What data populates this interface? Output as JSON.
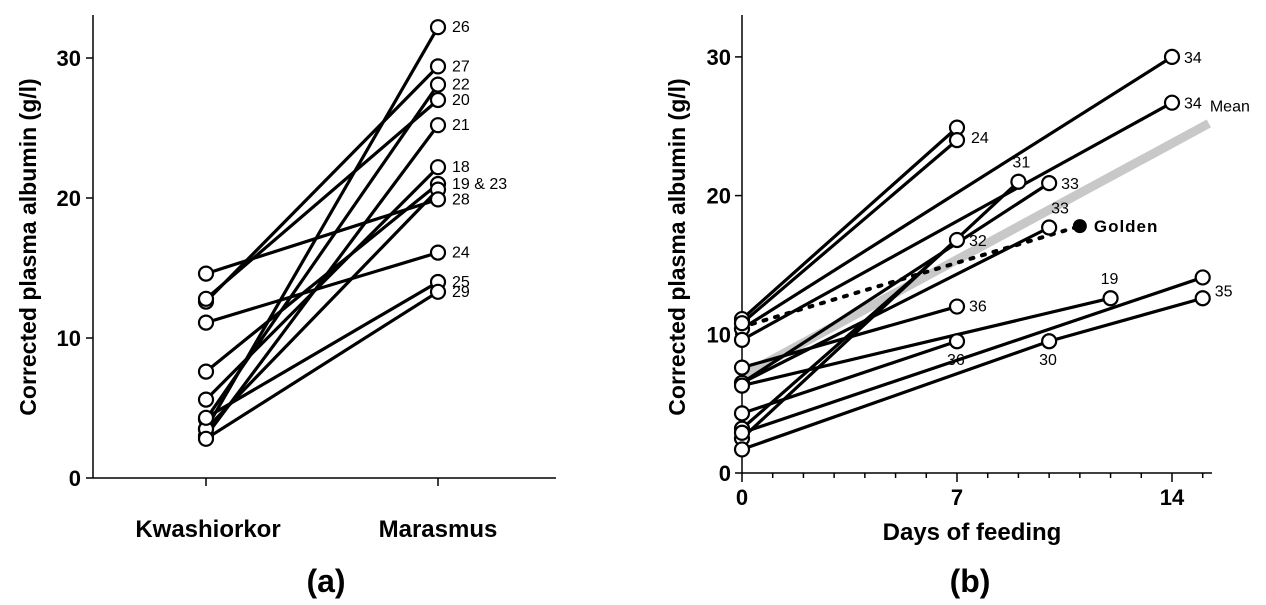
{
  "chart_data": [
    {
      "type": "line",
      "panel_label": "(a)",
      "ylabel": "Corrected plasma albumin (g/l)",
      "ylim": [
        0,
        32
      ],
      "yticks": [
        0,
        10,
        20,
        30
      ],
      "categories": [
        "Kwashiorkor",
        "Marasmus"
      ],
      "pairs": [
        {
          "values": [
            3.5,
            32.2
          ],
          "label": "26"
        },
        {
          "values": [
            12.6,
            29.4
          ],
          "label": "27"
        },
        {
          "values": [
            4.2,
            28.1
          ],
          "label": "22"
        },
        {
          "values": [
            12.8,
            27.0
          ],
          "label": "20"
        },
        {
          "values": [
            3.0,
            25.2
          ],
          "label": "21"
        },
        {
          "values": [
            5.6,
            22.2
          ],
          "label": "18"
        },
        {
          "values": [
            7.6,
            21.0
          ],
          "label": "19 & 23"
        },
        {
          "values": [
            3.5,
            20.6
          ],
          "label": ""
        },
        {
          "values": [
            14.6,
            19.9
          ],
          "label": "28"
        },
        {
          "values": [
            11.1,
            16.1
          ],
          "label": "24"
        },
        {
          "values": [
            4.3,
            14.0
          ],
          "label": "25"
        },
        {
          "values": [
            2.8,
            13.3
          ],
          "label": "29"
        }
      ]
    },
    {
      "type": "line",
      "panel_label": "(b)",
      "xlabel": "Days of feeding",
      "ylabel": "Corrected plasma albumin (g/l)",
      "xlim": [
        0,
        15
      ],
      "ylim": [
        0,
        32
      ],
      "xticks": [
        0,
        7,
        14
      ],
      "yticks": [
        0,
        10,
        20,
        30
      ],
      "series": [
        {
          "x": [
            0,
            14
          ],
          "y": [
            10.4,
            30.0
          ],
          "label": "34"
        },
        {
          "x": [
            0,
            14
          ],
          "y": [
            9.6,
            26.7
          ],
          "label": "34"
        },
        {
          "x": [
            0,
            7
          ],
          "y": [
            11.1,
            24.9
          ],
          "label": ""
        },
        {
          "x": [
            0,
            7
          ],
          "y": [
            10.8,
            24.0
          ],
          "label": "24"
        },
        {
          "x": [
            0,
            9
          ],
          "y": [
            2.5,
            21.0
          ],
          "label": "31"
        },
        {
          "x": [
            0,
            10
          ],
          "y": [
            6.5,
            20.9
          ],
          "label": "33"
        },
        {
          "x": [
            0,
            10
          ],
          "y": [
            6.5,
            17.7
          ],
          "label": "33"
        },
        {
          "x": [
            0,
            7
          ],
          "y": [
            3.2,
            16.8
          ],
          "label": "32"
        },
        {
          "x": [
            0,
            7
          ],
          "y": [
            7.6,
            12.0
          ],
          "label": "36"
        },
        {
          "x": [
            0,
            7
          ],
          "y": [
            4.3,
            9.5
          ],
          "label": "36"
        },
        {
          "x": [
            0,
            12
          ],
          "y": [
            6.3,
            12.6
          ],
          "label": "19"
        },
        {
          "x": [
            0,
            15
          ],
          "y": [
            2.9,
            14.1
          ],
          "label": "35"
        },
        {
          "x": [
            0,
            10
          ],
          "y": [
            1.7,
            9.5
          ],
          "label": "30"
        },
        {
          "x": [
            10,
            15
          ],
          "y": [
            9.5,
            12.6
          ],
          "label": ""
        }
      ],
      "mean": {
        "x": [
          0,
          15.2
        ],
        "y": [
          7.0,
          25.2
        ],
        "label": "Mean",
        "color": "#c8c8c8"
      },
      "golden": {
        "x": [
          0,
          11
        ],
        "y": [
          10.6,
          17.8
        ],
        "label": "Golden",
        "style": "dotted"
      }
    }
  ]
}
